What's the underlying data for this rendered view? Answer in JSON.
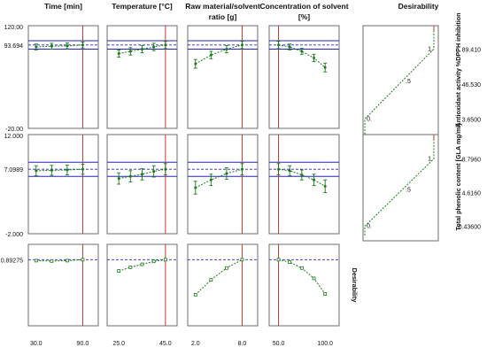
{
  "chart_data": {
    "type": "line",
    "title": "",
    "factors": [
      {
        "name": "Time [min]",
        "x_ticks": [
          "30.0",
          "90.0"
        ],
        "x_min": 20,
        "x_max": 110,
        "current": 90
      },
      {
        "name": "Temperature [°C]",
        "x_ticks": [
          "25.0",
          "45.0"
        ],
        "x_min": 20,
        "x_max": 50,
        "current": 45
      },
      {
        "name": "Raw material/solvent ratio [g]",
        "x_ticks": [
          "2.0",
          "8.0"
        ],
        "x_min": 1,
        "x_max": 10,
        "current": 8
      },
      {
        "name": "Concentration of solvent [%]",
        "x_ticks": [
          "50.0",
          "100.0"
        ],
        "x_min": 40,
        "x_max": 115,
        "current": 50
      }
    ],
    "responses": [
      {
        "name": "Antioxidant activity %DPPH inhibition",
        "y_ticks": [
          "120.00",
          "-20.00"
        ],
        "ylim": [
          -20,
          120
        ],
        "predicted_label": "93.694",
        "predicted": 93.694,
        "ci": [
          88.0,
          99.5
        ],
        "series": [
          {
            "x": [
              30,
              50,
              70,
              90
            ],
            "y": [
              91.0,
              92.0,
              92.5,
              93.7
            ],
            "err": [
              4,
              4,
              4,
              4
            ]
          },
          {
            "x": [
              25,
              30,
              35,
              40,
              45
            ],
            "y": [
              82,
              85,
              88,
              91,
              93.7
            ],
            "err": [
              5,
              5,
              5,
              5,
              5
            ]
          },
          {
            "x": [
              2,
              4,
              6,
              8
            ],
            "y": [
              68,
              80,
              88,
              93.7
            ],
            "err": [
              6,
              5,
              5,
              5
            ]
          },
          {
            "x": [
              50,
              62,
              75,
              88,
              100
            ],
            "y": [
              93.7,
              91,
              85,
              76,
              63
            ],
            "err": [
              5,
              4,
              4,
              5,
              6
            ]
          }
        ],
        "desirability": {
          "ticks": [
            "89.410",
            "46.530",
            "3.6500"
          ],
          "y_values": [
            89.41,
            46.53,
            3.65
          ],
          "y_min": -8,
          "y_max": 118,
          "labels": [
            "1.",
            ".5",
            "0."
          ]
        }
      },
      {
        "name": "Total phenolic content [GLA mg/ml]",
        "y_ticks": [
          "12.000",
          "-2.000"
        ],
        "ylim": [
          -2,
          12
        ],
        "predicted_label": "7.0989",
        "predicted": 7.0989,
        "ci": [
          6.1,
          8.1
        ],
        "series": [
          {
            "x": [
              30,
              50,
              70,
              90
            ],
            "y": [
              6.9,
              6.95,
              7.0,
              7.1
            ],
            "err": [
              0.7,
              0.7,
              0.7,
              0.7
            ]
          },
          {
            "x": [
              25,
              30,
              35,
              40,
              45
            ],
            "y": [
              5.8,
              6.1,
              6.4,
              6.8,
              7.1
            ],
            "err": [
              0.8,
              0.8,
              0.8,
              0.8,
              0.8
            ]
          },
          {
            "x": [
              2,
              4,
              6,
              8
            ],
            "y": [
              4.5,
              5.6,
              6.5,
              7.1
            ],
            "err": [
              0.9,
              0.8,
              0.8,
              0.8
            ]
          },
          {
            "x": [
              50,
              62,
              75,
              88,
              100
            ],
            "y": [
              7.1,
              6.9,
              6.3,
              5.6,
              4.7
            ],
            "err": [
              0.8,
              0.7,
              0.7,
              0.8,
              0.9
            ]
          }
        ],
        "desirability": {
          "ticks": [
            "8.7960",
            "4.6160",
            "0.43600"
          ],
          "y_values": [
            8.796,
            4.616,
            0.436
          ],
          "y_min": -0.5,
          "y_max": 11.8,
          "labels": [
            "1.",
            ".5",
            "0."
          ]
        }
      }
    ],
    "desirability_row": {
      "name": "Desirability",
      "predicted_label": "0.89275",
      "predicted": 0.89275,
      "ylim": [
        0,
        1.1
      ],
      "series": [
        {
          "x": [
            30,
            50,
            70,
            90
          ],
          "y": [
            0.88,
            0.875,
            0.88,
            0.89275
          ]
        },
        {
          "x": [
            25,
            30,
            35,
            40,
            45
          ],
          "y": [
            0.74,
            0.79,
            0.83,
            0.87,
            0.89275
          ]
        },
        {
          "x": [
            2,
            4,
            6,
            8
          ],
          "y": [
            0.42,
            0.62,
            0.78,
            0.89275
          ]
        },
        {
          "x": [
            50,
            62,
            75,
            88,
            100
          ],
          "y": [
            0.89275,
            0.86,
            0.78,
            0.64,
            0.43
          ]
        }
      ]
    },
    "desirability_column_title": "Desirability",
    "grid": false,
    "colors": {
      "series": "#1a7a1a",
      "ci_lines": "#2626b3",
      "current_line": "#c0392b",
      "frame": "#6e6e6e"
    }
  }
}
